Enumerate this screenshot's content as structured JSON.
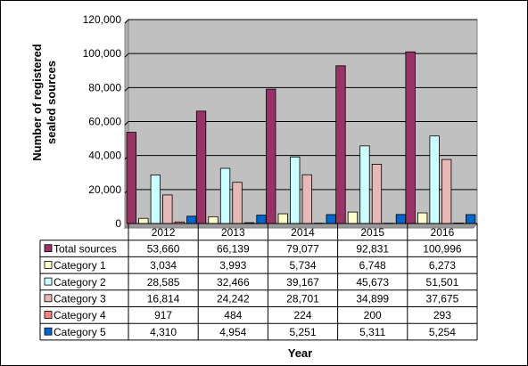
{
  "chart_data": {
    "type": "bar",
    "title": "",
    "xlabel": "Year",
    "ylabel_lines": [
      "Number of registered",
      "sealed sources"
    ],
    "ylim": [
      0,
      120000
    ],
    "yticks": [
      "0",
      "20,000",
      "40,000",
      "60,000",
      "80,000",
      "100,000",
      "120,000"
    ],
    "ytick_values": [
      0,
      20000,
      40000,
      60000,
      80000,
      100000,
      120000
    ],
    "grid": "horizontal",
    "plot_background": "#c0c0c0",
    "legend": "data-table",
    "categories": [
      "2012",
      "2013",
      "2014",
      "2015",
      "2016"
    ],
    "series": [
      {
        "name": "Total sources",
        "color": "#993366",
        "values": [
          53660,
          66139,
          79077,
          92831,
          100996
        ],
        "labels": [
          "53,660",
          "66,139",
          "79,077",
          "92,831",
          "100,996"
        ]
      },
      {
        "name": "Category 1",
        "color": "#ffffcc",
        "values": [
          3034,
          3993,
          5734,
          6748,
          6273
        ],
        "labels": [
          "3,034",
          "3,993",
          "5,734",
          "6,748",
          "6,273"
        ]
      },
      {
        "name": "Category 2",
        "color": "#ccffff",
        "values": [
          28585,
          32466,
          39167,
          45673,
          51501
        ],
        "labels": [
          "28,585",
          "32,466",
          "39,167",
          "45,673",
          "51,501"
        ]
      },
      {
        "name": "Category 3",
        "color": "#e6b9b8",
        "values": [
          16814,
          24242,
          28701,
          34899,
          37675
        ],
        "labels": [
          "16,814",
          "24,242",
          "28,701",
          "34,899",
          "37,675"
        ]
      },
      {
        "name": "Category 4",
        "color": "#ff8080",
        "values": [
          917,
          484,
          224,
          200,
          293
        ],
        "labels": [
          "917",
          "484",
          "224",
          "200",
          "293"
        ]
      },
      {
        "name": "Category 5",
        "color": "#0066cc",
        "values": [
          4310,
          4954,
          5251,
          5311,
          5254
        ],
        "labels": [
          "4,310",
          "4,954",
          "5,251",
          "5,311",
          "5,254"
        ]
      }
    ]
  }
}
